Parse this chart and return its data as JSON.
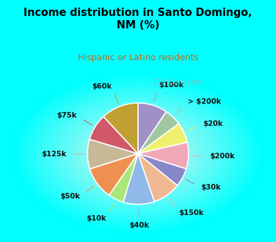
{
  "title": "Income distribution in Santo Domingo,\nNM (%)",
  "subtitle": "Hispanic or Latino residents",
  "bg_top": "#00FFFF",
  "bg_chart_outer": "#00FFFF",
  "bg_chart_inner": "#e8f5ef",
  "labels": [
    "$100k",
    "> $200k",
    "$20k",
    "$200k",
    "$30k",
    "$150k",
    "$40k",
    "$10k",
    "$50k",
    "$125k",
    "$75k",
    "$60k"
  ],
  "sizes": [
    9.5,
    5.5,
    6.5,
    8.5,
    6.0,
    9.0,
    10.0,
    5.0,
    10.5,
    9.5,
    8.5,
    12.0
  ],
  "colors": [
    "#a090c8",
    "#a0c8a0",
    "#f0f070",
    "#f0a8b8",
    "#8888c8",
    "#f0b890",
    "#90b8e8",
    "#a8e878",
    "#f09050",
    "#c8b898",
    "#d05868",
    "#c0a030"
  ],
  "startangle": 90,
  "watermark": "City-Data.com"
}
